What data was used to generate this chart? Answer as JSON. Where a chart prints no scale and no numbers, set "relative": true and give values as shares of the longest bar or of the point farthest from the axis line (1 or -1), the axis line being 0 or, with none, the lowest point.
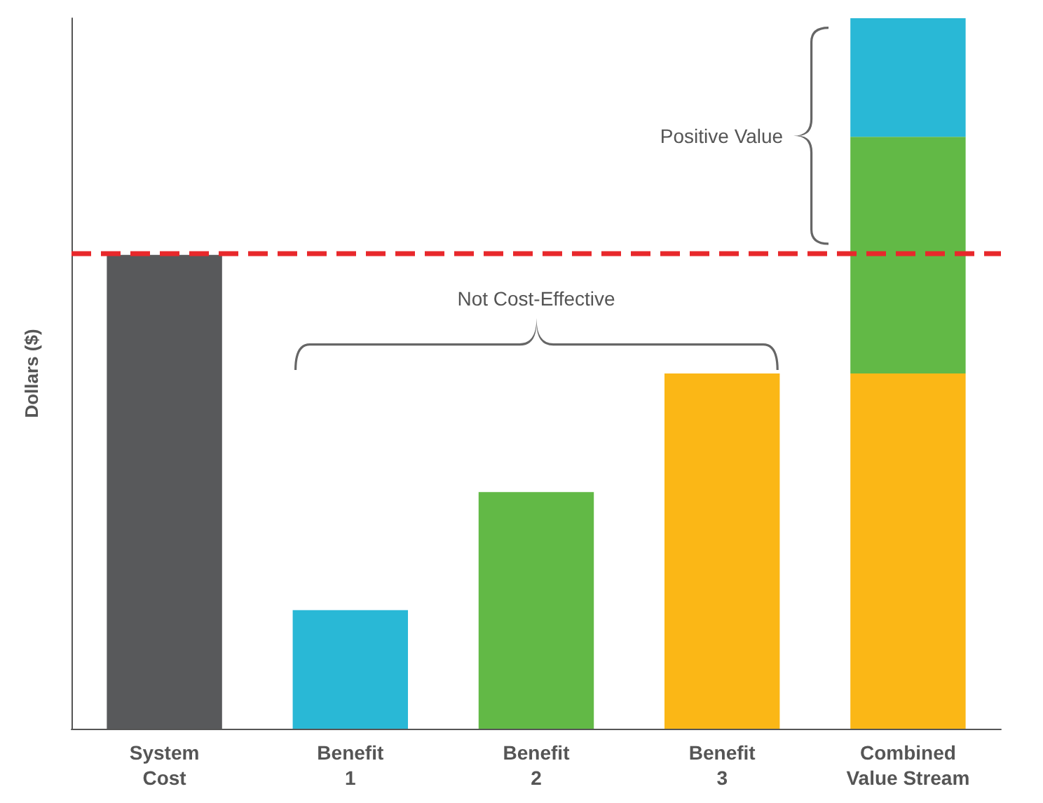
{
  "chart_data": {
    "type": "bar",
    "relative": true,
    "stacked": true,
    "ylabel": "Dollars ($)",
    "categories": [
      "System\nCost",
      "Benefit\n1",
      "Benefit\n2",
      "Benefit\n3",
      "Combined\nValue Stream"
    ],
    "series": [
      {
        "color": "#58595b",
        "values": [
          0.667,
          null,
          null,
          null,
          null
        ]
      },
      {
        "color": "#fbb716",
        "values": [
          null,
          null,
          null,
          0.5,
          0.5
        ]
      },
      {
        "color": "#62b946",
        "values": [
          null,
          null,
          0.333,
          null,
          0.333
        ]
      },
      {
        "color": "#29b8d6",
        "values": [
          null,
          0.167,
          null,
          null,
          0.167
        ]
      }
    ],
    "ref_lines": [
      {
        "axis": "y",
        "value": 0.667,
        "color": "#e8282b",
        "line_style": "dashed"
      }
    ],
    "annotations": [
      "Not Cost-Effective",
      "Positive Value"
    ],
    "grid": false
  }
}
